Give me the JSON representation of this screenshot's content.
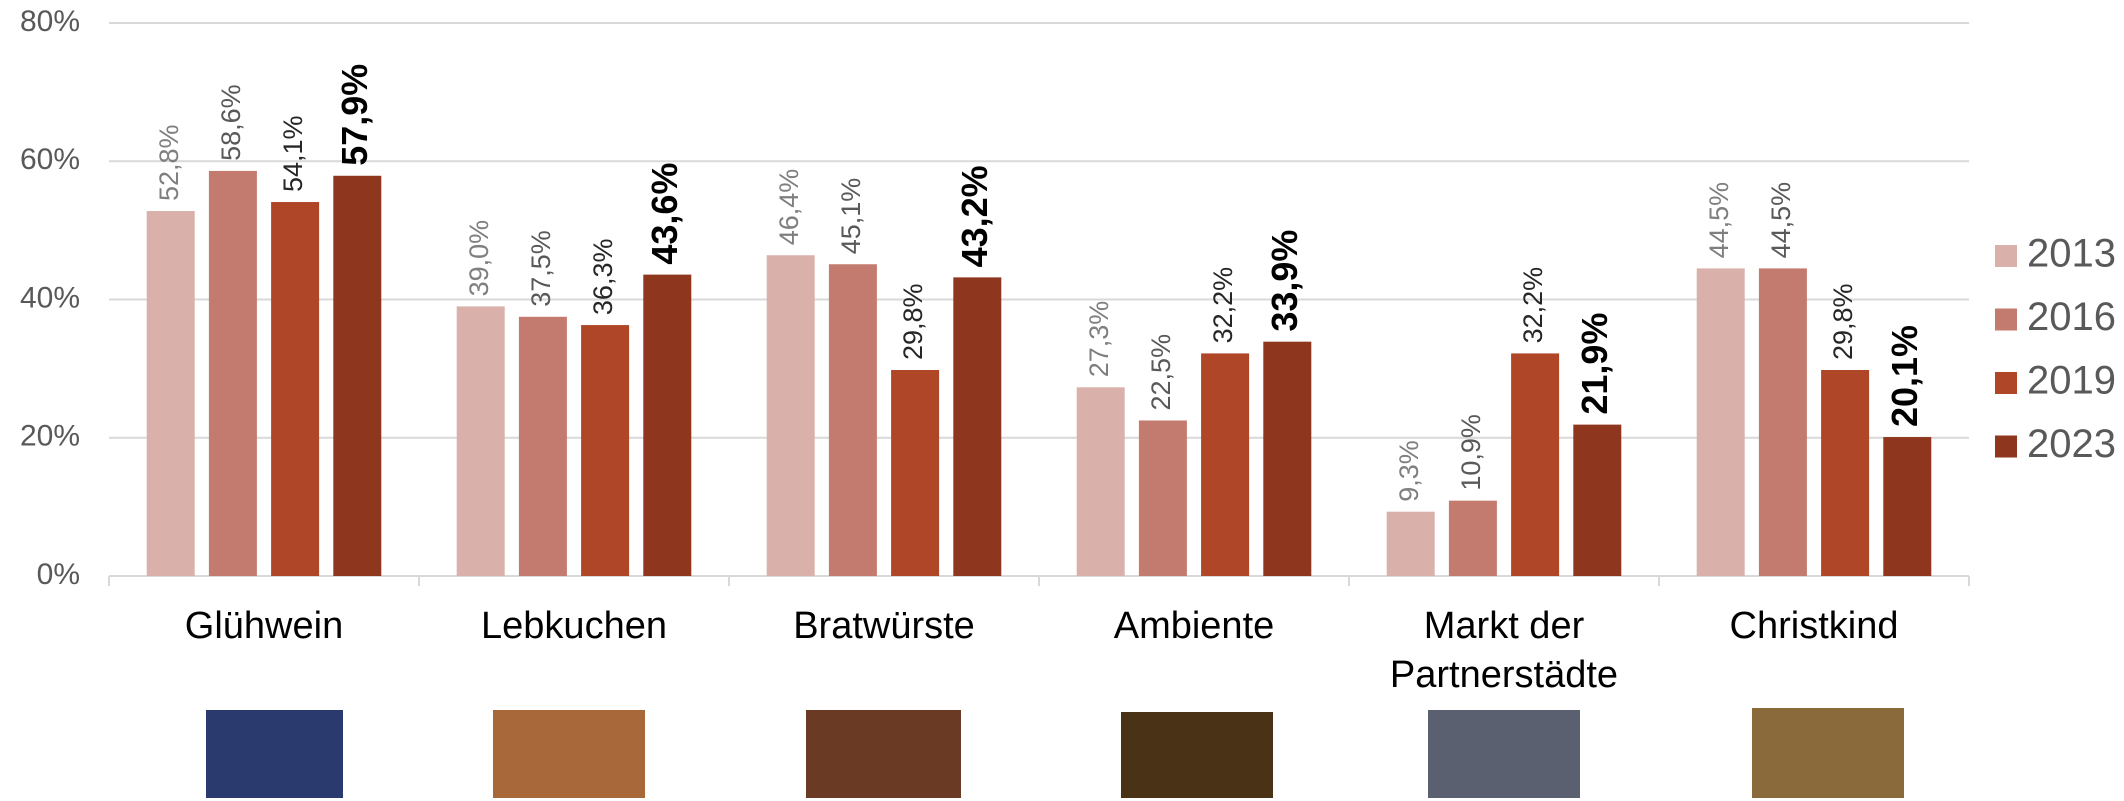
{
  "chart_data": {
    "type": "bar",
    "categories": [
      "Glühwein",
      "Lebkuchen",
      "Bratwürste",
      "Ambiente",
      "Markt der Partnerstädte",
      "Christkind"
    ],
    "series": [
      {
        "name": "2013",
        "color": "#d9b1aa",
        "values": [
          52.8,
          39.0,
          46.4,
          27.3,
          9.3,
          44.5
        ],
        "value_labels": [
          "52,8%",
          "39,0%",
          "46,4%",
          "27,3%",
          "9,3%",
          "44,5%"
        ]
      },
      {
        "name": "2016",
        "color": "#c47b6f",
        "values": [
          58.6,
          37.5,
          45.1,
          22.5,
          10.9,
          44.5
        ],
        "value_labels": [
          "58,6%",
          "37,5%",
          "45,1%",
          "22,5%",
          "10,9%",
          "44,5%"
        ]
      },
      {
        "name": "2019",
        "color": "#ae4627",
        "values": [
          54.1,
          36.3,
          29.8,
          32.2,
          32.2,
          29.8
        ],
        "value_labels": [
          "54,1%",
          "36,3%",
          "29,8%",
          "32,2%",
          "32,2%",
          "29,8%"
        ]
      },
      {
        "name": "2023",
        "color": "#8e361e",
        "values": [
          57.9,
          43.6,
          43.2,
          33.9,
          21.9,
          20.1
        ],
        "value_labels": [
          "57,9%",
          "43,6%",
          "43,2%",
          "33,9%",
          "21,9%",
          "20,1%"
        ]
      }
    ],
    "ylim": [
      0,
      80
    ],
    "yticks": [
      {
        "value": 0,
        "label": "0%"
      },
      {
        "value": 20,
        "label": "20%"
      },
      {
        "value": 40,
        "label": "40%"
      },
      {
        "value": 60,
        "label": "60%"
      },
      {
        "value": 80,
        "label": "80%"
      }
    ],
    "grid": true,
    "legend": "right"
  }
}
